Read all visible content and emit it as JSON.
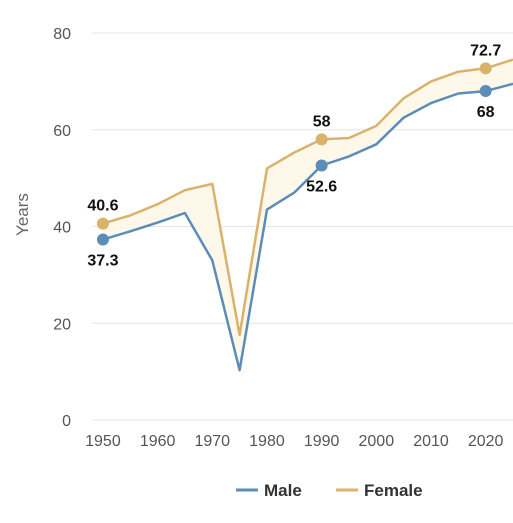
{
  "chart_data": {
    "type": "line",
    "ylabel": "Years",
    "xlim": [
      1948,
      2025
    ],
    "ylim": [
      0,
      80
    ],
    "yticks": [
      0,
      20,
      40,
      60,
      80
    ],
    "xticks": [
      1950,
      1960,
      1970,
      1980,
      1990,
      2000,
      2010,
      2020
    ],
    "grid": true,
    "legend_position": "bottom-center",
    "area_between_series": true,
    "area_color": "#fdf8ea",
    "series": [
      {
        "name": "Male",
        "color": "#5b8db8",
        "x": [
          1950,
          1955,
          1960,
          1965,
          1970,
          1975,
          1980,
          1985,
          1990,
          1995,
          2000,
          2005,
          2010,
          2015,
          2020,
          2025
        ],
        "y": [
          37.3,
          39.0,
          40.8,
          42.8,
          33.0,
          10.3,
          43.5,
          47.0,
          52.6,
          54.5,
          57.0,
          62.5,
          65.5,
          67.5,
          68.0,
          69.5
        ],
        "highlight_x": [
          1950,
          1990,
          2020
        ],
        "labels": [
          {
            "x": 1950,
            "y": 37.3,
            "text": "37.3",
            "position": "below"
          },
          {
            "x": 1990,
            "y": 52.6,
            "text": "52.6",
            "position": "below"
          },
          {
            "x": 2020,
            "y": 68.0,
            "text": "68",
            "position": "below"
          }
        ]
      },
      {
        "name": "Female",
        "color": "#d9b36b",
        "x": [
          1950,
          1955,
          1960,
          1965,
          1970,
          1975,
          1980,
          1985,
          1990,
          1995,
          2000,
          2005,
          2010,
          2015,
          2020,
          2025
        ],
        "y": [
          40.6,
          42.3,
          44.6,
          47.5,
          48.8,
          17.6,
          52.0,
          55.3,
          58.0,
          58.3,
          60.8,
          66.5,
          70.0,
          72.0,
          72.7,
          74.5
        ],
        "highlight_x": [
          1950,
          1990,
          2020
        ],
        "labels": [
          {
            "x": 1950,
            "y": 40.6,
            "text": "40.6",
            "position": "above"
          },
          {
            "x": 1990,
            "y": 58.0,
            "text": "58",
            "position": "above"
          },
          {
            "x": 2020,
            "y": 72.7,
            "text": "72.7",
            "position": "above"
          }
        ]
      }
    ]
  }
}
